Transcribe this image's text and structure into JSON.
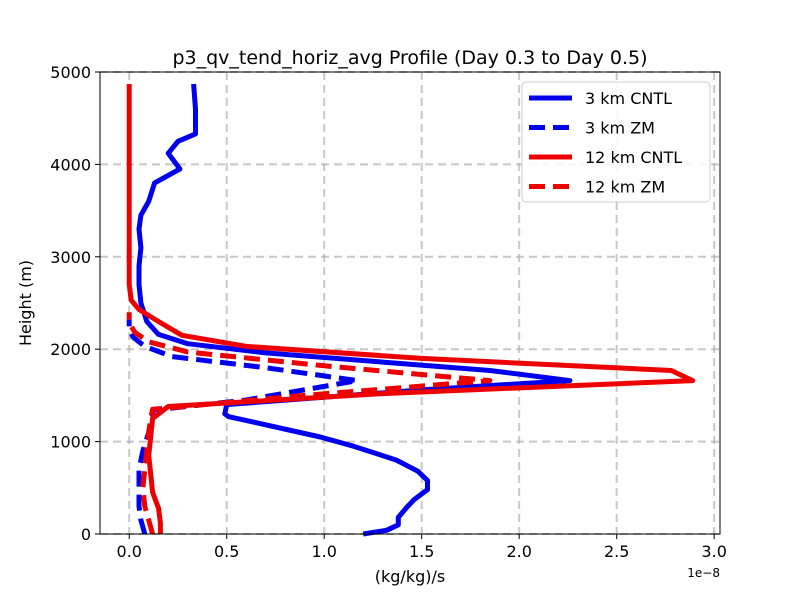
{
  "chart_data": {
    "type": "line",
    "title": "p3_qv_tend_horiz_avg Profile (Day 0.3 to Day 0.5)",
    "xlabel": "(kg/kg)/s",
    "ylabel": "Height (m)",
    "x_offset_label": "1e−8",
    "xlim": [
      -0.15,
      3.03
    ],
    "ylim": [
      0,
      5000
    ],
    "xticks": [
      0.0,
      0.5,
      1.0,
      1.5,
      2.0,
      2.5,
      3.0
    ],
    "xtick_labels": [
      "0.0",
      "0.5",
      "1.0",
      "1.5",
      "2.0",
      "2.5",
      "3.0"
    ],
    "yticks": [
      0,
      1000,
      2000,
      3000,
      4000,
      5000
    ],
    "ytick_labels": [
      "0",
      "1000",
      "2000",
      "3000",
      "4000",
      "5000"
    ],
    "grid": true,
    "legend_position": "top-right",
    "series": [
      {
        "name": "3 km CNTL",
        "color": "#0000ee",
        "dash": "solid",
        "x": [
          1.2,
          1.32,
          1.38,
          1.38,
          1.42,
          1.46,
          1.53,
          1.53,
          1.48,
          1.37,
          1.15,
          0.98,
          0.83,
          0.62,
          0.51,
          0.49,
          0.5,
          1.5,
          2.26,
          1.85,
          1.3,
          0.7,
          0.3,
          0.15,
          0.09,
          0.06,
          0.05,
          0.05,
          0.06,
          0.05,
          0.06,
          0.1,
          0.13,
          0.26,
          0.2,
          0.25,
          0.34,
          0.34,
          0.33
        ],
        "y": [
          0,
          40,
          100,
          180,
          280,
          370,
          480,
          580,
          680,
          800,
          950,
          1050,
          1120,
          1220,
          1270,
          1300,
          1400,
          1560,
          1660,
          1770,
          1860,
          1960,
          2060,
          2160,
          2300,
          2500,
          2700,
          2900,
          3100,
          3300,
          3450,
          3600,
          3800,
          3950,
          4120,
          4250,
          4330,
          4600,
          4870
        ]
      },
      {
        "name": "3 km ZM",
        "color": "#0000ee",
        "dash": "dashed",
        "x": [
          0.08,
          0.06,
          0.05,
          0.05,
          0.05,
          0.07,
          0.1,
          0.12,
          0.12,
          0.6,
          1.17,
          0.7,
          0.22,
          0.08,
          0.02,
          0.0,
          0.0
        ],
        "y": [
          0,
          150,
          300,
          500,
          700,
          900,
          1100,
          1250,
          1340,
          1450,
          1660,
          1800,
          1920,
          2030,
          2130,
          2220,
          2320
        ]
      },
      {
        "name": "12 km CNTL",
        "color": "#ee0000",
        "dash": "solid",
        "x": [
          0.16,
          0.16,
          0.15,
          0.12,
          0.11,
          0.1,
          0.11,
          0.12,
          0.2,
          1.3,
          2.89,
          2.78,
          1.5,
          0.6,
          0.27,
          0.15,
          0.05,
          0.01,
          0.0,
          0.0,
          0.0,
          0.0,
          0.0,
          0.0
        ],
        "y": [
          0,
          120,
          280,
          450,
          650,
          850,
          1050,
          1250,
          1380,
          1520,
          1660,
          1770,
          1900,
          2030,
          2150,
          2300,
          2430,
          2530,
          2700,
          3000,
          3500,
          4000,
          4500,
          4870
        ]
      },
      {
        "name": "12 km ZM",
        "color": "#ee0000",
        "dash": "dashed",
        "x": [
          0.12,
          0.1,
          0.08,
          0.07,
          0.08,
          0.09,
          0.1,
          0.11,
          0.12,
          0.9,
          1.85,
          1.0,
          0.3,
          0.1,
          0.03,
          0.0,
          0.0
        ],
        "y": [
          0,
          150,
          300,
          500,
          700,
          900,
          1100,
          1250,
          1350,
          1500,
          1660,
          1820,
          1970,
          2080,
          2180,
          2280,
          2400
        ]
      }
    ]
  }
}
